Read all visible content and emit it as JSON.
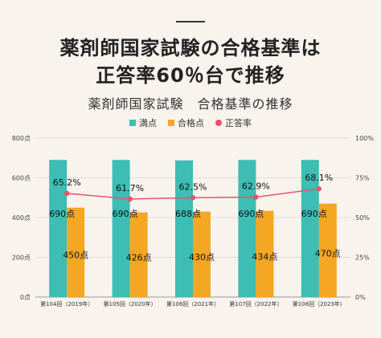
{
  "title_line1": "薬剤師国家試験の合格基準は",
  "title_line2": "正答率60％台で推移",
  "subtitle": "薬剤師国家試験　合格基準の推移",
  "colors": {
    "full_score": "#3dbdb3",
    "pass_score": "#f5a623",
    "rate": "#e8526e"
  },
  "chart_data": {
    "type": "bar",
    "categories": [
      "第104回（2019年）",
      "第105回（2020年）",
      "第106回（2021年）",
      "第107回（2022年）",
      "第108回（2023年）"
    ],
    "series": [
      {
        "name": "満点",
        "values": [
          690,
          690,
          688,
          690,
          690
        ],
        "labels": [
          "690点",
          "690点",
          "688点",
          "690点",
          "690点"
        ]
      },
      {
        "name": "合格点",
        "values": [
          450,
          426,
          430,
          434,
          470
        ],
        "labels": [
          "450点",
          "426点",
          "430点",
          "434点",
          "470点"
        ]
      },
      {
        "name": "正答率",
        "type": "line",
        "axis": "right",
        "values": [
          65.2,
          61.7,
          62.5,
          62.9,
          68.1
        ],
        "labels": [
          "65.2%",
          "61.7%",
          "62.5%",
          "62.9%",
          "68.1%"
        ]
      }
    ],
    "y_left": {
      "min": 0,
      "max": 800,
      "ticks": [
        "0点",
        "200点",
        "400点",
        "600点",
        "800点"
      ]
    },
    "y_right": {
      "min": 0,
      "max": 100,
      "ticks": [
        "0%",
        "25%",
        "50%",
        "75%",
        "100%"
      ]
    },
    "legend": "top-center",
    "grid": true
  }
}
